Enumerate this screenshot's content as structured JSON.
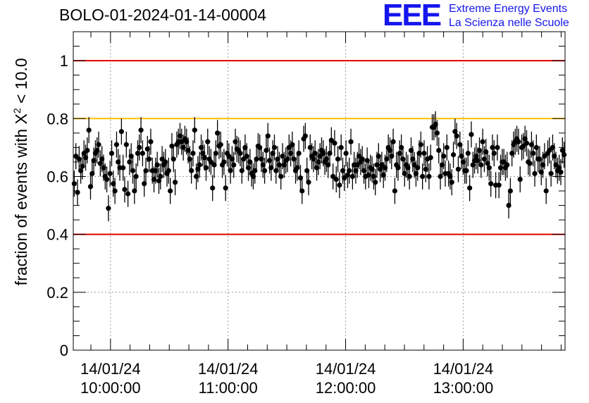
{
  "title": "BOLO-01-2024-01-14-00004",
  "logo": {
    "mark": "EEE",
    "line1": "Extreme Energy Events",
    "line2": "La Scienza nelle Scuole"
  },
  "chart_data": {
    "type": "scatter",
    "title": "BOLO-01-2024-01-14-00004",
    "ylabel_main": "fraction of events with X",
    "ylabel_sup": "2",
    "ylabel_tail": " < 10.0",
    "xlabel": "",
    "ylim": [
      0,
      1.1
    ],
    "xlim": [
      "2024-01-14 09:41:00",
      "2024-01-14 13:52:00"
    ],
    "grid": true,
    "x_ticks": [
      {
        "date": "14/01/24",
        "time": "10:00:00",
        "t": "2024-01-14 10:00:00"
      },
      {
        "date": "14/01/24",
        "time": "11:00:00",
        "t": "2024-01-14 11:00:00"
      },
      {
        "date": "14/01/24",
        "time": "12:00:00",
        "t": "2024-01-14 12:00:00"
      },
      {
        "date": "14/01/24",
        "time": "13:00:00",
        "t": "2024-01-14 13:00:00"
      }
    ],
    "y_ticks": [
      "0",
      "0.2",
      "0.4",
      "0.6",
      "0.8",
      "1"
    ],
    "reference_lines": [
      {
        "y": 1.0,
        "color": "#e00000"
      },
      {
        "y": 0.8,
        "color": "#ffbf00"
      },
      {
        "y": 0.4,
        "color": "#e00000"
      }
    ],
    "point_color": "#000000",
    "series": [
      {
        "error": 0.045,
        "values": [
          0.575,
          0.67,
          0.545,
          0.66,
          0.62,
          0.635,
          0.68,
          0.665,
          0.69,
          0.76,
          0.565,
          0.61,
          0.655,
          0.68,
          0.69,
          0.71,
          0.645,
          0.66,
          0.63,
          0.6,
          0.59,
          0.49,
          0.61,
          0.68,
          0.575,
          0.55,
          0.71,
          0.65,
          0.63,
          0.755,
          0.63,
          0.555,
          0.71,
          0.54,
          0.65,
          0.67,
          0.62,
          0.55,
          0.6,
          0.68,
          0.7,
          0.76,
          0.68,
          0.575,
          0.62,
          0.695,
          0.66,
          0.72,
          0.62,
          0.59,
          0.62,
          0.64,
          0.585,
          0.6,
          0.66,
          0.64,
          0.65,
          0.61,
          0.62,
          0.55,
          0.705,
          0.66,
          0.58,
          0.71,
          0.72,
          0.74,
          0.72,
          0.7,
          0.73,
          0.72,
          0.69,
          0.66,
          0.62,
          0.68,
          0.76,
          0.6,
          0.625,
          0.64,
          0.7,
          0.68,
          0.665,
          0.63,
          0.72,
          0.66,
          0.65,
          0.56,
          0.64,
          0.68,
          0.75,
          0.705,
          0.71,
          0.64,
          0.65,
          0.56,
          0.68,
          0.67,
          0.62,
          0.66,
          0.64,
          0.72,
          0.695,
          0.69,
          0.68,
          0.62,
          0.66,
          0.7,
          0.67,
          0.63,
          0.65,
          0.61,
          0.6,
          0.62,
          0.66,
          0.705,
          0.7,
          0.66,
          0.64,
          0.62,
          0.69,
          0.74,
          0.655,
          0.63,
          0.68,
          0.7,
          0.62,
          0.66,
          0.64,
          0.6,
          0.67,
          0.64,
          0.655,
          0.66,
          0.7,
          0.68,
          0.71,
          0.66,
          0.62,
          0.63,
          0.68,
          0.595,
          0.55,
          0.73,
          0.74,
          0.62,
          0.58,
          0.7,
          0.67,
          0.66,
          0.68,
          0.63,
          0.65,
          0.67,
          0.69,
          0.68,
          0.65,
          0.66,
          0.64,
          0.68,
          0.725,
          0.6,
          0.715,
          0.59,
          0.66,
          0.57,
          0.7,
          0.62,
          0.595,
          0.68,
          0.605,
          0.62,
          0.72,
          0.6,
          0.64,
          0.62,
          0.64,
          0.67,
          0.65,
          0.66,
          0.62,
          0.6,
          0.655,
          0.605,
          0.63,
          0.625,
          0.6,
          0.58,
          0.64,
          0.67,
          0.625,
          0.64,
          0.605,
          0.63,
          0.66,
          0.7,
          0.69,
          0.67,
          0.72,
          0.55,
          0.64,
          0.63,
          0.68,
          0.7,
          0.66,
          0.61,
          0.64,
          0.63,
          0.6,
          0.69,
          0.66,
          0.64,
          0.61,
          0.63,
          0.68,
          0.71,
          0.6,
          0.68,
          0.625,
          0.66,
          0.6,
          0.665,
          0.77,
          0.77,
          0.78,
          0.75,
          0.69,
          0.6,
          0.64,
          0.67,
          0.61,
          0.7,
          0.61,
          0.6,
          0.58,
          0.675,
          0.755,
          0.74,
          0.625,
          0.71,
          0.67,
          0.65,
          0.62,
          0.62,
          0.68,
          0.56,
          0.745,
          0.64,
          0.655,
          0.67,
          0.655,
          0.69,
          0.64,
          0.72,
          0.66,
          0.685,
          0.645,
          0.63,
          0.575,
          0.7,
          0.68,
          0.57,
          0.7,
          0.57,
          0.63,
          0.65,
          0.65,
          0.63,
          0.64,
          0.5,
          0.55,
          0.68,
          0.71,
          0.72,
          0.73,
          0.72,
          0.59,
          0.7,
          0.705,
          0.73,
          0.715,
          0.65,
          0.645,
          0.71,
          0.68,
          0.61,
          0.7,
          0.66,
          0.66,
          0.615,
          0.64,
          0.67,
          0.55,
          0.68,
          0.69,
          0.61,
          0.7,
          0.67,
          0.64,
          0.62,
          0.63,
          0.615,
          0.69,
          0.675
        ]
      }
    ]
  }
}
